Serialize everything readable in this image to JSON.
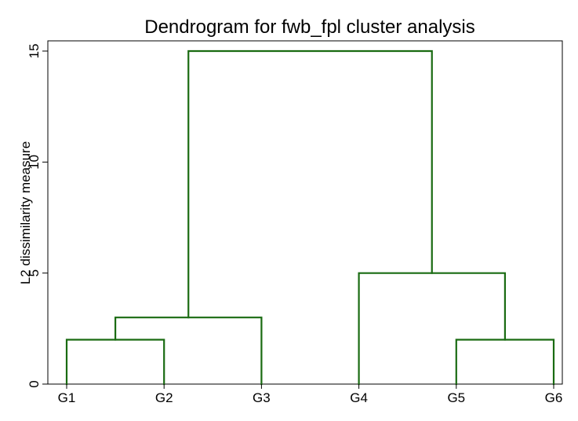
{
  "chart_data": {
    "type": "dendrogram",
    "title": "Dendrogram for fwb_fpl cluster analysis",
    "xlabel": "",
    "ylabel": "L2 dissimilarity measure",
    "ylim": [
      0,
      15
    ],
    "y_ticks": [
      0,
      5,
      10,
      15
    ],
    "leaves": [
      "G1",
      "G2",
      "G3",
      "G4",
      "G5",
      "G6"
    ],
    "merges": [
      {
        "left": "G1",
        "right": "G2",
        "height": 2
      },
      {
        "left": "G5",
        "right": "G6",
        "height": 2
      },
      {
        "left": "G1-G2",
        "right": "G3",
        "height": 3
      },
      {
        "left": "G4",
        "right": "G5-G6",
        "height": 5
      },
      {
        "left": "G1-G2-G3",
        "right": "G4-G5-G6",
        "height": 15
      }
    ],
    "grid": false,
    "link_color": "#1a6b12"
  }
}
